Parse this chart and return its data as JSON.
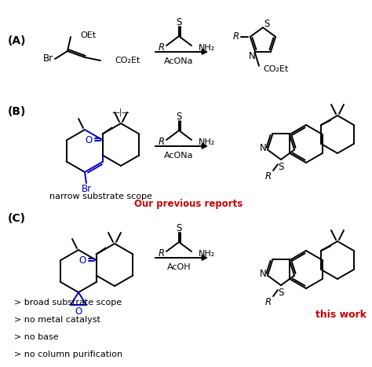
{
  "background_color": "#ffffff",
  "section_A": "(A)",
  "section_B": "(B)",
  "section_C": "(C)",
  "narrow_scope": "narrow substrate scope",
  "previous_reports": "Our previous reports",
  "bullet_1": "> broad substrate scope",
  "bullet_2": "> no metal catalyst",
  "bullet_3": "> no base",
  "bullet_4": "> no column purification",
  "this_work": "this work",
  "black": "#000000",
  "blue": "#0000cc",
  "red": "#cc0000"
}
